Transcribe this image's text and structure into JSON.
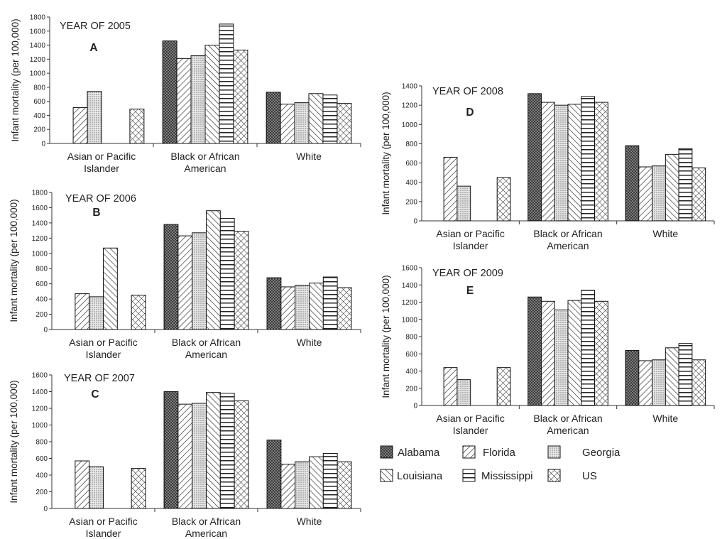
{
  "legend": [
    {
      "name": "Alabama",
      "pattern": "dark-dots"
    },
    {
      "name": "Florida",
      "pattern": "forward-diagonal"
    },
    {
      "name": "Georgia",
      "pattern": "light-dots"
    },
    {
      "name": "Louisiana",
      "pattern": "backward-diagonal"
    },
    {
      "name": "Mississippi",
      "pattern": "horizontal-lines"
    },
    {
      "name": "US",
      "pattern": "crosshatch"
    }
  ],
  "chart_data": [
    {
      "type": "bar",
      "panel": "A",
      "title": "YEAR OF 2005",
      "ylabel": "Infant mortality (per 100,000)",
      "ylim": [
        0,
        1800
      ],
      "yticks": [
        "0",
        "200",
        "400",
        "600",
        "800",
        "1000",
        "1200",
        "1400",
        "1600",
        "1800"
      ],
      "categories": [
        "Asian or Pacific|Islander",
        "Black or African|American",
        "White"
      ],
      "series": [
        {
          "name": "Alabama",
          "values": [
            null,
            1460,
            730
          ]
        },
        {
          "name": "Florida",
          "values": [
            510,
            1210,
            560
          ]
        },
        {
          "name": "Georgia",
          "values": [
            740,
            1250,
            580
          ]
        },
        {
          "name": "Louisiana",
          "values": [
            null,
            1400,
            710
          ]
        },
        {
          "name": "Mississippi",
          "values": [
            null,
            1700,
            690
          ]
        },
        {
          "name": "US",
          "values": [
            490,
            1330,
            570
          ]
        }
      ]
    },
    {
      "type": "bar",
      "panel": "B",
      "title": "YEAR OF 2006",
      "ylabel": "Infant mortality (per 100,000)",
      "ylim": [
        0,
        1800
      ],
      "yticks": [
        "0",
        "200",
        "400",
        "600",
        "800",
        "1000",
        "1200",
        "1400",
        "1600",
        "1800"
      ],
      "categories": [
        "Asian or Pacific|Islander",
        "Black or African|American",
        "White"
      ],
      "series": [
        {
          "name": "Alabama",
          "values": [
            null,
            1380,
            680
          ]
        },
        {
          "name": "Florida",
          "values": [
            470,
            1230,
            560
          ]
        },
        {
          "name": "Georgia",
          "values": [
            430,
            1270,
            580
          ]
        },
        {
          "name": "Louisiana",
          "values": [
            1070,
            1560,
            610
          ]
        },
        {
          "name": "Mississippi",
          "values": [
            null,
            1460,
            690
          ]
        },
        {
          "name": "US",
          "values": [
            450,
            1290,
            550
          ]
        }
      ]
    },
    {
      "type": "bar",
      "panel": "C",
      "title": "YEAR OF 2007",
      "ylabel": "Infant mortality (per 100,000)",
      "ylim": [
        0,
        1600
      ],
      "yticks": [
        "0",
        "200",
        "400",
        "600",
        "800",
        "1000",
        "1200",
        "1400",
        "1600"
      ],
      "categories": [
        "Asian or Pacific|Islander",
        "Black or African|American",
        "White"
      ],
      "series": [
        {
          "name": "Alabama",
          "values": [
            null,
            1400,
            820
          ]
        },
        {
          "name": "Florida",
          "values": [
            570,
            1250,
            530
          ]
        },
        {
          "name": "Georgia",
          "values": [
            500,
            1260,
            560
          ]
        },
        {
          "name": "Louisiana",
          "values": [
            null,
            1390,
            620
          ]
        },
        {
          "name": "Mississippi",
          "values": [
            null,
            1380,
            660
          ]
        },
        {
          "name": "US",
          "values": [
            480,
            1290,
            560
          ]
        }
      ]
    },
    {
      "type": "bar",
      "panel": "D",
      "title": "YEAR OF 2008",
      "ylabel": "Infant mortality (per 100,000)",
      "ylim": [
        0,
        1400
      ],
      "yticks": [
        "0",
        "200",
        "400",
        "600",
        "800",
        "1000",
        "1200",
        "1400"
      ],
      "categories": [
        "Asian or Pacific|Islander",
        "Black or African|American",
        "White"
      ],
      "series": [
        {
          "name": "Alabama",
          "values": [
            null,
            1320,
            780
          ]
        },
        {
          "name": "Florida",
          "values": [
            660,
            1230,
            560
          ]
        },
        {
          "name": "Georgia",
          "values": [
            360,
            1200,
            570
          ]
        },
        {
          "name": "Louisiana",
          "values": [
            null,
            1210,
            690
          ]
        },
        {
          "name": "Mississippi",
          "values": [
            null,
            1290,
            750
          ]
        },
        {
          "name": "US",
          "values": [
            450,
            1230,
            550
          ]
        }
      ]
    },
    {
      "type": "bar",
      "panel": "E",
      "title": "YEAR OF 2009",
      "ylabel": "Infant mortality (per 100,000)",
      "ylim": [
        0,
        1600
      ],
      "yticks": [
        "0",
        "200",
        "400",
        "600",
        "800",
        "1000",
        "1200",
        "1400",
        "1600"
      ],
      "categories": [
        "Asian or Pacific|Islander",
        "Black or African|American",
        "White"
      ],
      "series": [
        {
          "name": "Alabama",
          "values": [
            null,
            1260,
            640
          ]
        },
        {
          "name": "Florida",
          "values": [
            440,
            1210,
            520
          ]
        },
        {
          "name": "Georgia",
          "values": [
            300,
            1110,
            530
          ]
        },
        {
          "name": "Louisiana",
          "values": [
            null,
            1220,
            670
          ]
        },
        {
          "name": "Mississippi",
          "values": [
            null,
            1340,
            720
          ]
        },
        {
          "name": "US",
          "values": [
            440,
            1210,
            530
          ]
        }
      ]
    }
  ]
}
